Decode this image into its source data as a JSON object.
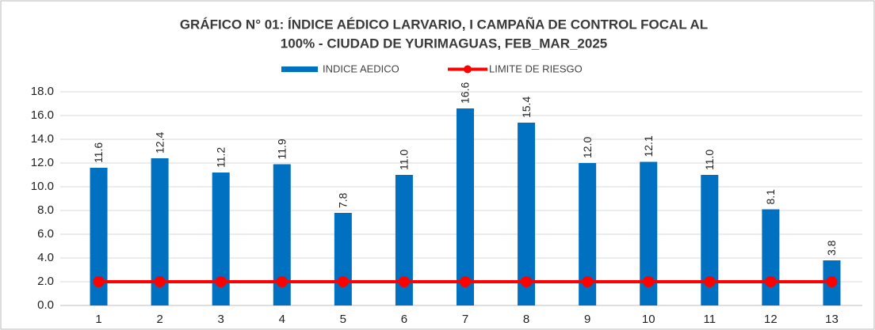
{
  "chart_data": {
    "type": "bar",
    "title": [
      "GRÁFICO N° 01: ÍNDICE AÉDICO LARVARIO, I CAMPAÑA DE CONTROL FOCAL AL",
      "100%  - CIUDAD DE YURIMAGUAS, FEB_MAR_2025"
    ],
    "categories": [
      "1",
      "2",
      "3",
      "4",
      "5",
      "6",
      "7",
      "8",
      "9",
      "10",
      "11",
      "12",
      "13"
    ],
    "series": [
      {
        "name": "INDICE AEDICO",
        "type": "bar",
        "color": "#0070c0",
        "values": [
          11.6,
          12.4,
          11.2,
          11.9,
          7.8,
          11.0,
          16.6,
          15.4,
          12.0,
          12.1,
          11.0,
          8.1,
          3.8
        ],
        "value_labels": [
          "11.6",
          "12.4",
          "11.2",
          "11.9",
          "7.8",
          "11.0",
          "16.6",
          "15.4",
          "12.0",
          "12.1",
          "11.0",
          "8.1",
          "3.8"
        ]
      },
      {
        "name": "LIMITE DE RIESGO",
        "type": "line",
        "color": "#ff0000",
        "values": [
          2,
          2,
          2,
          2,
          2,
          2,
          2,
          2,
          2,
          2,
          2,
          2,
          2
        ]
      }
    ],
    "ylim": [
      0,
      18
    ],
    "yticks": [
      {
        "value": 0,
        "label": "0.0"
      },
      {
        "value": 2,
        "label": "2.0"
      },
      {
        "value": 4,
        "label": "4.0"
      },
      {
        "value": 6,
        "label": "6.0"
      },
      {
        "value": 8,
        "label": "8.0"
      },
      {
        "value": 10,
        "label": "10.0"
      },
      {
        "value": 12,
        "label": "12.0"
      },
      {
        "value": 14,
        "label": "14.0"
      },
      {
        "value": 16,
        "label": "16.0"
      },
      {
        "value": 18,
        "label": "18.0"
      }
    ],
    "grid": true
  }
}
